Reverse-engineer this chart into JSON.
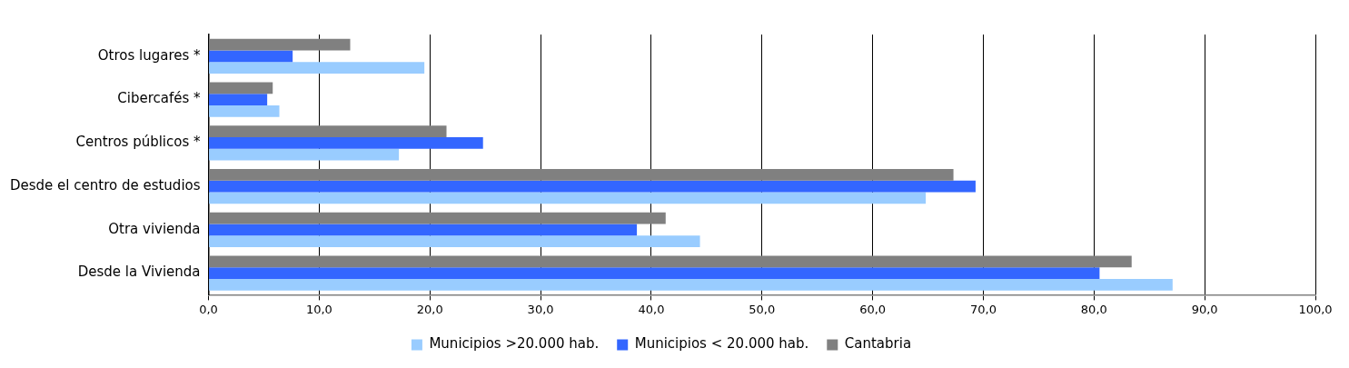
{
  "chart_data": {
    "type": "bar",
    "orientation": "horizontal",
    "categories": [
      "Otros lugares *",
      "Cibercafés *",
      "Centros públicos *",
      "Desde el centro de estudios",
      "Otra vivienda",
      "Desde la Vivienda"
    ],
    "series": [
      {
        "name": "Municipios >20.000 hab.",
        "color": "#99ccff",
        "values": [
          19.5,
          6.4,
          17.2,
          64.8,
          44.4,
          87.1
        ]
      },
      {
        "name": "Municipios < 20.000 hab.",
        "color": "#3366ff",
        "values": [
          7.6,
          5.3,
          24.8,
          69.3,
          38.7,
          80.5
        ]
      },
      {
        "name": "Cantabria",
        "color": "#808080",
        "values": [
          12.8,
          5.8,
          21.5,
          67.3,
          41.3,
          83.4
        ]
      }
    ],
    "xlim": [
      0,
      100
    ],
    "xticks": [
      {
        "value": 0,
        "label": "0,0"
      },
      {
        "value": 10,
        "label": "10,0"
      },
      {
        "value": 20,
        "label": "20,0"
      },
      {
        "value": 30,
        "label": "30,0"
      },
      {
        "value": 40,
        "label": "40,0"
      },
      {
        "value": 50,
        "label": "50,0"
      },
      {
        "value": 60,
        "label": "60,0"
      },
      {
        "value": 70,
        "label": "70,0"
      },
      {
        "value": 80,
        "label": "80,0"
      },
      {
        "value": 90,
        "label": "90,0"
      },
      {
        "value": 100,
        "label": "100,0"
      }
    ],
    "grid": "x",
    "legend": "bottom"
  }
}
